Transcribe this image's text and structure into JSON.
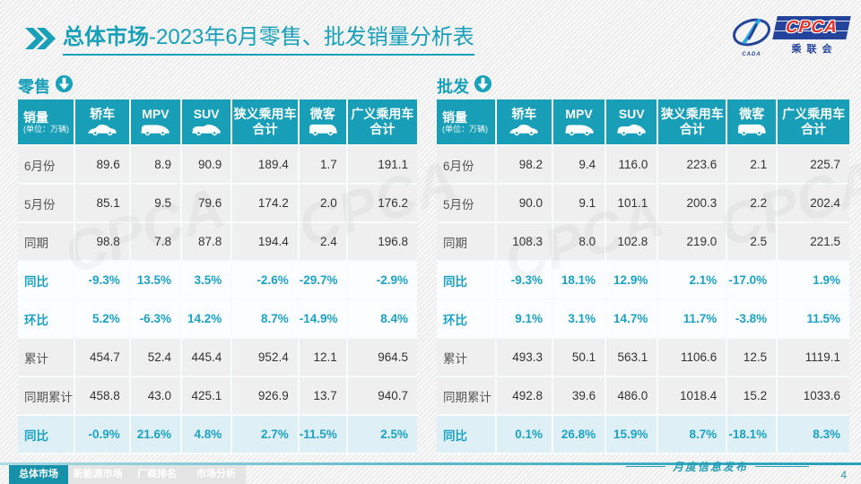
{
  "header": {
    "title_bold": "总体市场",
    "title_rest": "-2023年6月零售、批发销量分析表",
    "logo": {
      "acronym": "CPCA",
      "cn_name": "乘联会",
      "oval_text": "CADA"
    }
  },
  "watermark_text": "CPCA",
  "tables": [
    {
      "section": "零售",
      "corner": {
        "title": "销量",
        "unit": "(单位：万辆)"
      },
      "columns": [
        {
          "label": "轿车",
          "icon": "sedan"
        },
        {
          "label": "MPV",
          "icon": "mpv"
        },
        {
          "label": "SUV",
          "icon": "suv"
        },
        {
          "label": "狭义乘用车",
          "label2": "合计"
        },
        {
          "label": "微客",
          "icon": "microvan"
        },
        {
          "label": "广义乘用车",
          "label2": "合计"
        }
      ],
      "rows": [
        {
          "label": "6月份",
          "style": "plain",
          "values": [
            "89.6",
            "8.9",
            "90.9",
            "189.4",
            "1.7",
            "191.1"
          ]
        },
        {
          "label": "5月份",
          "style": "plain",
          "values": [
            "85.1",
            "9.5",
            "79.6",
            "174.2",
            "2.0",
            "176.2"
          ]
        },
        {
          "label": "同期",
          "style": "plain",
          "values": [
            "98.8",
            "7.8",
            "87.8",
            "194.4",
            "2.4",
            "196.8"
          ]
        },
        {
          "label": "同比",
          "style": "percent",
          "values": [
            "-9.3%",
            "13.5%",
            "3.5%",
            "-2.6%",
            "-29.7%",
            "-2.9%"
          ]
        },
        {
          "label": "环比",
          "style": "percent",
          "values": [
            "5.2%",
            "-6.3%",
            "14.2%",
            "8.7%",
            "-14.9%",
            "8.4%"
          ]
        },
        {
          "label": "累计",
          "style": "plain",
          "values": [
            "454.7",
            "52.4",
            "445.4",
            "952.4",
            "12.1",
            "964.5"
          ]
        },
        {
          "label": "同期累计",
          "style": "plain",
          "values": [
            "458.8",
            "43.0",
            "425.1",
            "926.9",
            "13.7",
            "940.7"
          ]
        },
        {
          "label": "同比",
          "style": "percent-hl",
          "values": [
            "-0.9%",
            "21.6%",
            "4.8%",
            "2.7%",
            "-11.5%",
            "2.5%"
          ]
        }
      ]
    },
    {
      "section": "批发",
      "corner": {
        "title": "销量",
        "unit": "(单位：万辆)"
      },
      "columns": [
        {
          "label": "轿车",
          "icon": "sedan"
        },
        {
          "label": "MPV",
          "icon": "mpv"
        },
        {
          "label": "SUV",
          "icon": "suv"
        },
        {
          "label": "狭义乘用车",
          "label2": "合计"
        },
        {
          "label": "微客",
          "icon": "microvan"
        },
        {
          "label": "广义乘用车",
          "label2": "合计"
        }
      ],
      "rows": [
        {
          "label": "6月份",
          "style": "plain",
          "values": [
            "98.2",
            "9.4",
            "116.0",
            "223.6",
            "2.1",
            "225.7"
          ]
        },
        {
          "label": "5月份",
          "style": "plain",
          "values": [
            "90.0",
            "9.1",
            "101.1",
            "200.3",
            "2.2",
            "202.4"
          ]
        },
        {
          "label": "同期",
          "style": "plain",
          "values": [
            "108.3",
            "8.0",
            "102.8",
            "219.0",
            "2.5",
            "221.5"
          ]
        },
        {
          "label": "同比",
          "style": "percent",
          "values": [
            "-9.3%",
            "18.1%",
            "12.9%",
            "2.1%",
            "-17.0%",
            "1.9%"
          ]
        },
        {
          "label": "环比",
          "style": "percent",
          "values": [
            "9.1%",
            "3.1%",
            "14.7%",
            "11.7%",
            "-3.8%",
            "11.5%"
          ]
        },
        {
          "label": "累计",
          "style": "plain",
          "values": [
            "493.3",
            "50.1",
            "563.1",
            "1106.6",
            "12.5",
            "1119.1"
          ]
        },
        {
          "label": "同期累计",
          "style": "plain",
          "values": [
            "492.8",
            "39.6",
            "486.0",
            "1018.4",
            "15.2",
            "1033.6"
          ]
        },
        {
          "label": "同比",
          "style": "percent-hl",
          "values": [
            "0.1%",
            "26.8%",
            "15.9%",
            "8.7%",
            "-18.1%",
            "8.3%"
          ]
        }
      ]
    }
  ],
  "footer": {
    "tabs": [
      {
        "label": "总体市场",
        "active": true
      },
      {
        "label": "新能源市场",
        "active": false
      },
      {
        "label": "厂商排名",
        "active": false
      },
      {
        "label": "市场分析",
        "active": false
      }
    ],
    "note": "月度信息发布",
    "page_number": "4"
  }
}
